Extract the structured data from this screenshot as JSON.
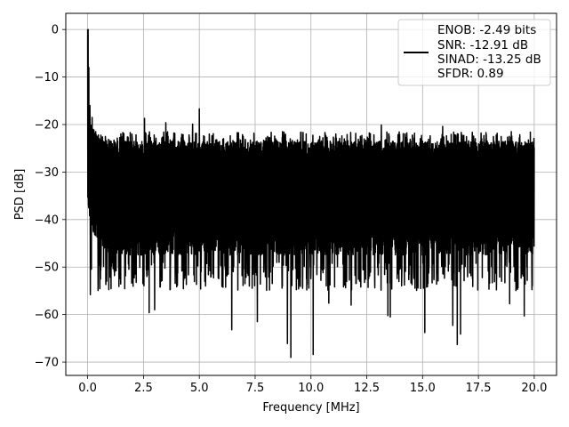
{
  "chart_data": {
    "type": "line",
    "title": "",
    "xlabel": "Frequency [MHz]",
    "ylabel": "PSD [dB]",
    "xlim": [
      -0.98,
      21.0
    ],
    "ylim": [
      -72.8,
      3.4
    ],
    "xticks": [
      0.0,
      2.5,
      5.0,
      7.5,
      10.0,
      12.5,
      15.0,
      17.5,
      20.0
    ],
    "xtick_labels": [
      "0.0",
      "2.5",
      "5.0",
      "7.5",
      "10.0",
      "12.5",
      "15.0",
      "17.5",
      "20.0"
    ],
    "yticks": [
      0,
      -10,
      -20,
      -30,
      -40,
      -50,
      -60,
      -70
    ],
    "ytick_labels": [
      "0",
      "−10",
      "−20",
      "−30",
      "−40",
      "−50",
      "−60",
      "−70"
    ],
    "grid": true,
    "legend_position": "top-right",
    "legend_entries": [
      "ENOB: -2.49 bits",
      "SNR: -12.91 dB",
      "SINAD: -13.25 dB",
      "SFDR: 0.89"
    ],
    "series": [
      {
        "color": "#000000",
        "x_start": 0.0,
        "x_end": 20.0,
        "peak_db": 0.0,
        "noise_ceiling_db": -25,
        "noise_floor_db": -45,
        "spurs": [
          {
            "x": 0.02,
            "y": 0.0
          },
          {
            "x": 0.05,
            "y": -8.0
          },
          {
            "x": 0.1,
            "y": -16.0
          },
          {
            "x": 0.2,
            "y": -18.5
          },
          {
            "x": 5.0,
            "y": -16.7
          },
          {
            "x": 2.55,
            "y": -18.7
          },
          {
            "x": 3.5,
            "y": -19.6
          },
          {
            "x": 4.7,
            "y": -19.9
          },
          {
            "x": 13.15,
            "y": -20.1
          },
          {
            "x": 15.9,
            "y": -20.4
          }
        ],
        "dips": [
          {
            "x": 0.12,
            "y": -55.8
          },
          {
            "x": 1.4,
            "y": -54.1
          },
          {
            "x": 2.75,
            "y": -59.6
          },
          {
            "x": 3.0,
            "y": -59.0
          },
          {
            "x": 6.45,
            "y": -63.2
          },
          {
            "x": 7.6,
            "y": -61.5
          },
          {
            "x": 8.95,
            "y": -66.1
          },
          {
            "x": 9.1,
            "y": -69.0
          },
          {
            "x": 10.1,
            "y": -68.4
          },
          {
            "x": 10.8,
            "y": -57.6
          },
          {
            "x": 11.8,
            "y": -58.0
          },
          {
            "x": 13.45,
            "y": -60.2
          },
          {
            "x": 13.55,
            "y": -60.5
          },
          {
            "x": 15.1,
            "y": -63.8
          },
          {
            "x": 16.35,
            "y": -62.3
          },
          {
            "x": 16.55,
            "y": -66.3
          },
          {
            "x": 16.7,
            "y": -64.1
          },
          {
            "x": 18.9,
            "y": -57.7
          },
          {
            "x": 19.55,
            "y": -60.3
          }
        ]
      }
    ]
  }
}
